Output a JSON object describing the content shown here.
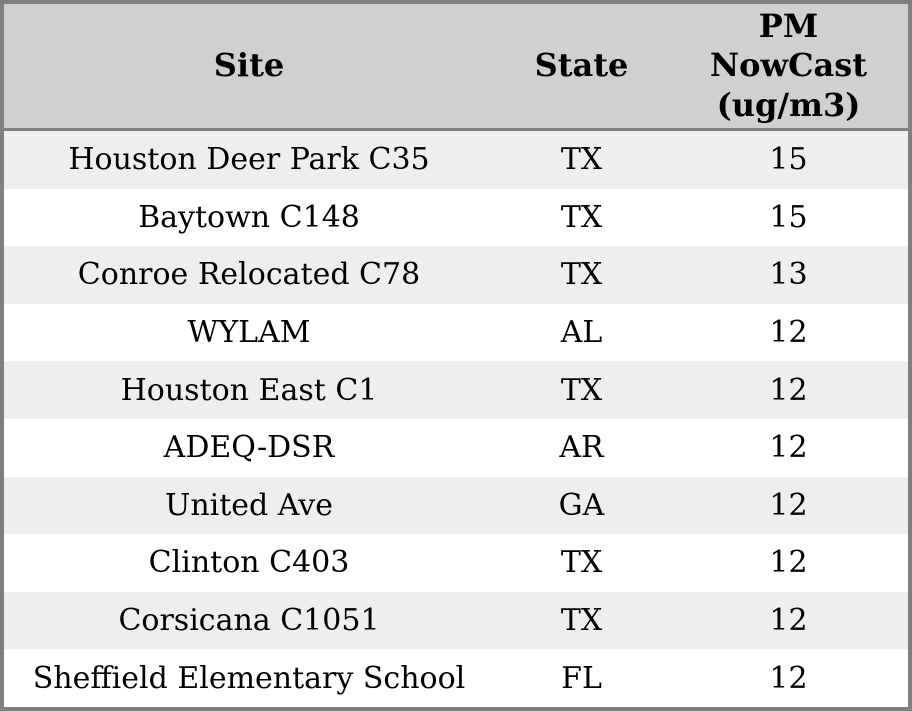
{
  "chart_data": {
    "type": "table",
    "columns": [
      "Site",
      "State",
      "PM NowCast (ug/m3)"
    ],
    "rows": [
      [
        "Houston Deer Park C35",
        "TX",
        15
      ],
      [
        "Baytown C148",
        "TX",
        15
      ],
      [
        "Conroe Relocated C78",
        "TX",
        13
      ],
      [
        "WYLAM",
        "AL",
        12
      ],
      [
        "Houston East C1",
        "TX",
        12
      ],
      [
        "ADEQ-DSR",
        "AR",
        12
      ],
      [
        "United Ave",
        "GA",
        12
      ],
      [
        "Clinton C403",
        "TX",
        12
      ],
      [
        "Corsicana C1051",
        "TX",
        12
      ],
      [
        "Sheffield Elementary School",
        "FL",
        12
      ]
    ],
    "layout": {
      "header_position": "top",
      "row_striping": true,
      "text_align": "center"
    }
  },
  "table": {
    "headers": {
      "site": "Site",
      "state": "State",
      "pm": "PM\nNowCast\n(ug/m3)"
    },
    "rows": [
      {
        "site": "Houston Deer Park C35",
        "state": "TX",
        "pm": "15"
      },
      {
        "site": "Baytown C148",
        "state": "TX",
        "pm": "15"
      },
      {
        "site": "Conroe Relocated C78",
        "state": "TX",
        "pm": "13"
      },
      {
        "site": "WYLAM",
        "state": "AL",
        "pm": "12"
      },
      {
        "site": "Houston East C1",
        "state": "TX",
        "pm": "12"
      },
      {
        "site": "ADEQ-DSR",
        "state": "AR",
        "pm": "12"
      },
      {
        "site": "United Ave",
        "state": "GA",
        "pm": "12"
      },
      {
        "site": "Clinton C403",
        "state": "TX",
        "pm": "12"
      },
      {
        "site": "Corsicana C1051",
        "state": "TX",
        "pm": "12"
      },
      {
        "site": "Sheffield Elementary School",
        "state": "FL",
        "pm": "12"
      }
    ]
  },
  "colors": {
    "header_bg": "#d0d0d0",
    "row_stripe_bg": "#eeeeee",
    "row_bg": "#ffffff",
    "border": "#808080",
    "text": "#000000"
  }
}
